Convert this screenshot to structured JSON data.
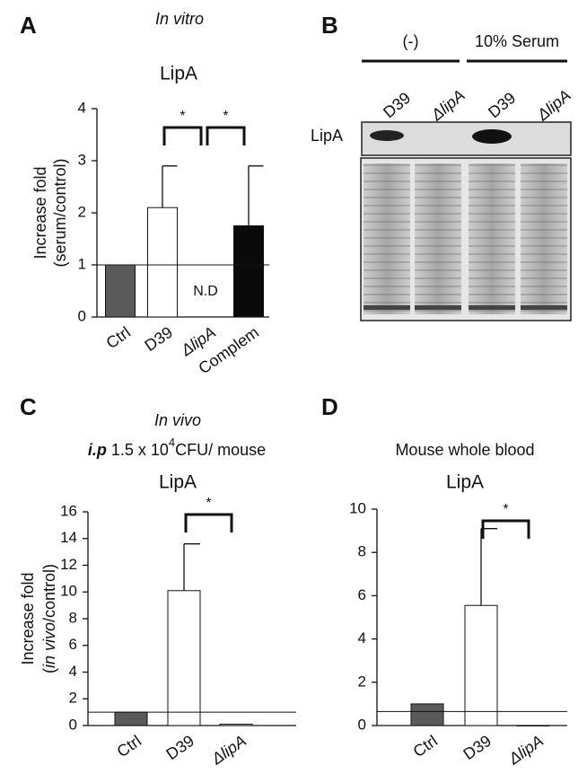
{
  "chart_data": [
    {
      "type": "bar",
      "panel": "A",
      "condition": "In vitro",
      "title": "LipA",
      "ylabel": [
        [
          "Increase fold"
        ],
        [
          "(serum/control)"
        ]
      ],
      "categories": [
        "Ctrl",
        "D39",
        "ΔlipA",
        "Complem"
      ],
      "values": [
        1,
        2.1,
        null,
        1.75
      ],
      "errors": [
        null,
        0.8,
        null,
        1.15
      ],
      "value_labels": [
        null,
        null,
        "N.D",
        null
      ],
      "colors": [
        "#5a5a5a",
        "#ffffff",
        "#ffffff",
        "#0a0a0a"
      ],
      "reference_line": 1,
      "ylim": [
        0,
        4
      ],
      "yticks": [
        0,
        1,
        2,
        3,
        4
      ],
      "significance": [
        {
          "between": [
            1,
            2
          ],
          "label": "*"
        },
        {
          "between": [
            2,
            3
          ],
          "label": "*"
        }
      ]
    },
    {
      "type": "blot",
      "panel": "B",
      "groups": [
        "(-)",
        "10% Serum"
      ],
      "lanes": [
        "D39",
        "ΔlipA",
        "D39",
        "ΔlipA"
      ],
      "row_label": "LipA"
    },
    {
      "type": "bar",
      "panel": "C",
      "condition": "In vivo",
      "subtitle": [
        "i.p",
        "1.5 x 10",
        "4",
        "CFU/ mouse"
      ],
      "title": "LipA",
      "ylabel": [
        [
          "Increase fold"
        ],
        [
          "(",
          "in vivo",
          "/control)"
        ]
      ],
      "categories": [
        "Ctrl",
        "D39",
        "ΔlipA"
      ],
      "values": [
        1,
        10.1,
        0.1
      ],
      "errors": [
        null,
        3.5,
        null
      ],
      "colors": [
        "#5a5a5a",
        "#ffffff",
        "#ffffff"
      ],
      "reference_line": 1,
      "ylim": [
        0,
        16
      ],
      "yticks": [
        0,
        2,
        4,
        6,
        8,
        10,
        12,
        14,
        16
      ],
      "significance": [
        {
          "between": [
            1,
            2
          ],
          "label": "*"
        }
      ]
    },
    {
      "type": "bar",
      "panel": "D",
      "subtitle": [
        "Mouse whole blood"
      ],
      "title": "LipA",
      "categories": [
        "Ctrl",
        "D39",
        "ΔlipA"
      ],
      "values": [
        1,
        5.55,
        0
      ],
      "errors": [
        null,
        3.55,
        null
      ],
      "colors": [
        "#5a5a5a",
        "#ffffff",
        "#ffffff"
      ],
      "reference_line": 0.65,
      "ylim": [
        0,
        10
      ],
      "yticks": [
        0,
        2,
        4,
        6,
        8,
        10
      ],
      "significance": [
        {
          "between": [
            1,
            2
          ],
          "label": "*"
        }
      ]
    }
  ]
}
